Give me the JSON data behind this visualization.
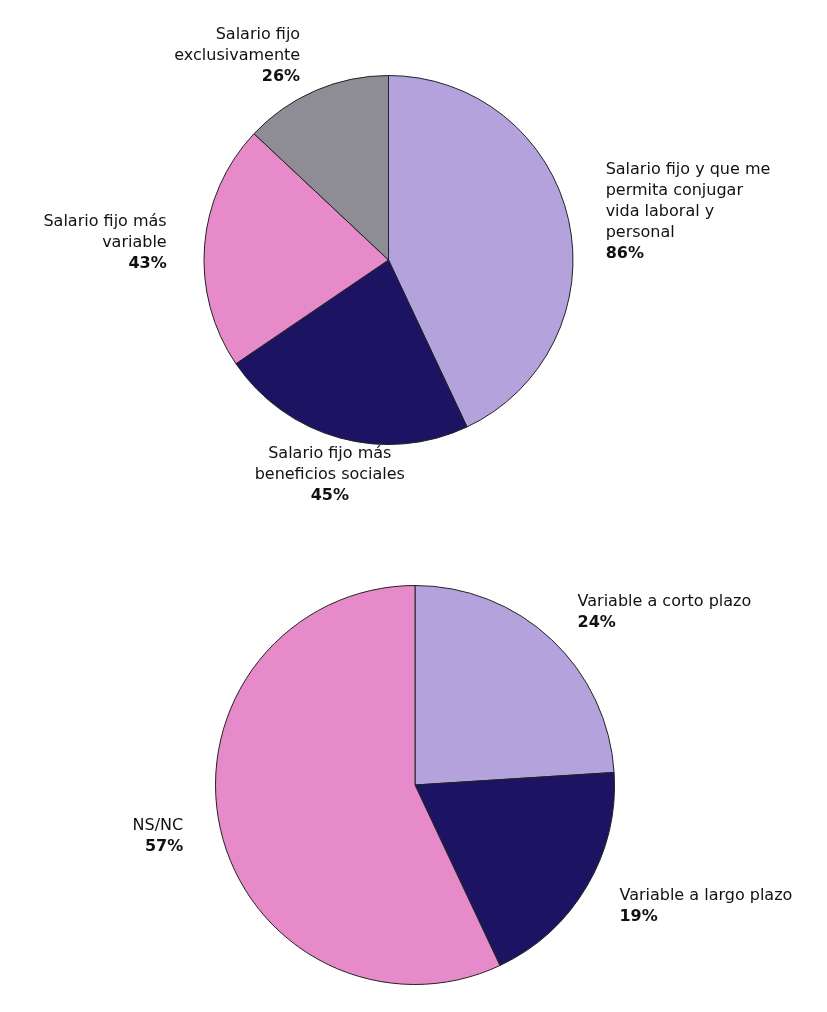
{
  "chart_data": [
    {
      "type": "pie",
      "categories": [
        "Salario fijo y que me permita conjugar vida laboral y personal",
        "Salario fijo más beneficios sociales",
        "Salario fijo más variable",
        "Salario fijo exclusivamente"
      ],
      "values": [
        86,
        45,
        43,
        26
      ],
      "value_labels": [
        "86%",
        "45%",
        "43%",
        "26%"
      ],
      "colors": [
        "#b3a2dc",
        "#1c1462",
        "#e78ac9",
        "#8e8c94"
      ],
      "legend": false
    },
    {
      "type": "pie",
      "categories": [
        "Variable a corto plazo",
        "Variable a largo plazo",
        "NS/NC"
      ],
      "values": [
        24,
        19,
        57
      ],
      "value_labels": [
        "24%",
        "19%",
        "57%"
      ],
      "colors": [
        "#b3a2dc",
        "#1c1462",
        "#e78ac9"
      ],
      "legend": false
    }
  ]
}
